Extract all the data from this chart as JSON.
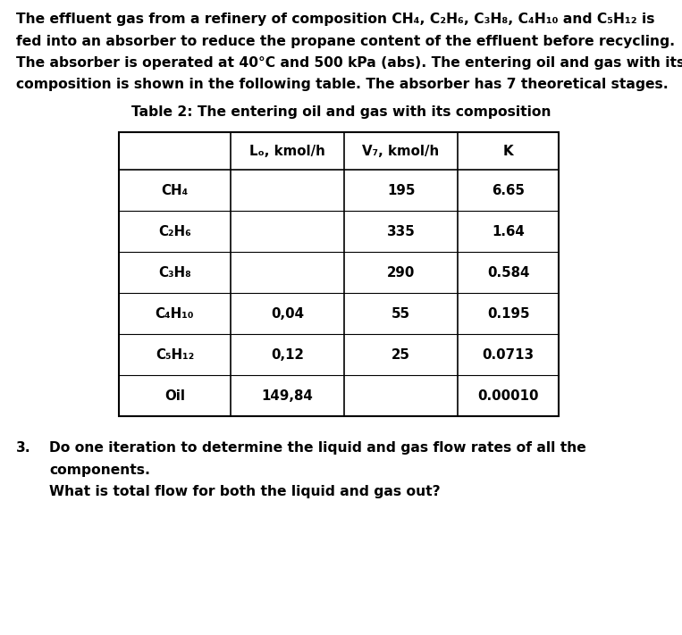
{
  "bg_color": "#ffffff",
  "para_lines": [
    "The effluent gas from a refinery of composition CH₄, C₂H₆, C₃H₈, C₄H₁₀ and C₅H₁₂ is",
    "fed into an absorber to reduce the propane content of the effluent before recycling.",
    "The absorber is operated at 40°C and 500 kPa (abs). The entering oil and gas with its",
    "composition is shown in the following table. The absorber has 7 theoretical stages."
  ],
  "table_title": "Table 2: The entering oil and gas with its composition",
  "col_headers": [
    "",
    "Lₒ, kmol/h",
    "V₇, kmol/h",
    "K"
  ],
  "rows": [
    [
      "CH₄",
      "",
      "195",
      "6.65"
    ],
    [
      "C₂H₆",
      "",
      "335",
      "1.64"
    ],
    [
      "C₃H₈",
      "",
      "290",
      "0.584"
    ],
    [
      "C₄H₁₀",
      "0,04",
      "55",
      "0.195"
    ],
    [
      "C₅H₁₂",
      "0,12",
      "25",
      "0.0713"
    ],
    [
      "Oil",
      "149,84",
      "",
      "0.00010"
    ]
  ],
  "q_number": "3.",
  "q_line1": "Do one iteration to determine the liquid and gas flow rates of all the",
  "q_line2": "components.",
  "q_line3": "What is total flow for both the liquid and gas out?",
  "font_size_body": 11.2,
  "font_size_table_title": 11.2,
  "font_size_table": 10.8,
  "font_size_question": 11.2,
  "fig_w": 7.63,
  "fig_h": 7.11,
  "dpi": 100
}
